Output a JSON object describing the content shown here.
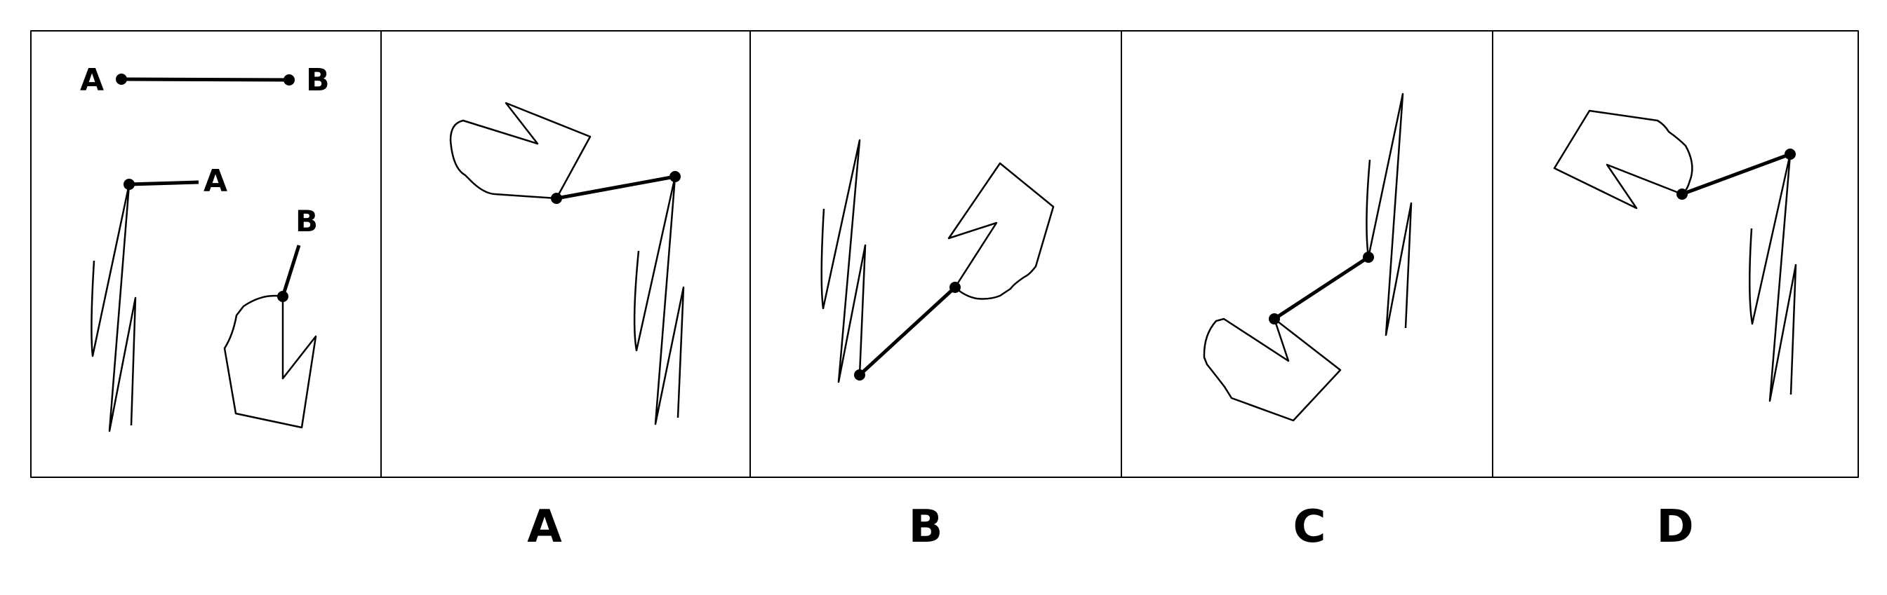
{
  "question": {
    "segment_labels": {
      "start": "A",
      "end": "B"
    },
    "piece_labels": {
      "zigzag_piece": "A",
      "polygon_piece": "B"
    }
  },
  "options": [
    {
      "label": "A"
    },
    {
      "label": "B"
    },
    {
      "label": "C"
    },
    {
      "label": "D"
    }
  ],
  "colors": {
    "stroke": "#000000",
    "background": "#ffffff"
  }
}
